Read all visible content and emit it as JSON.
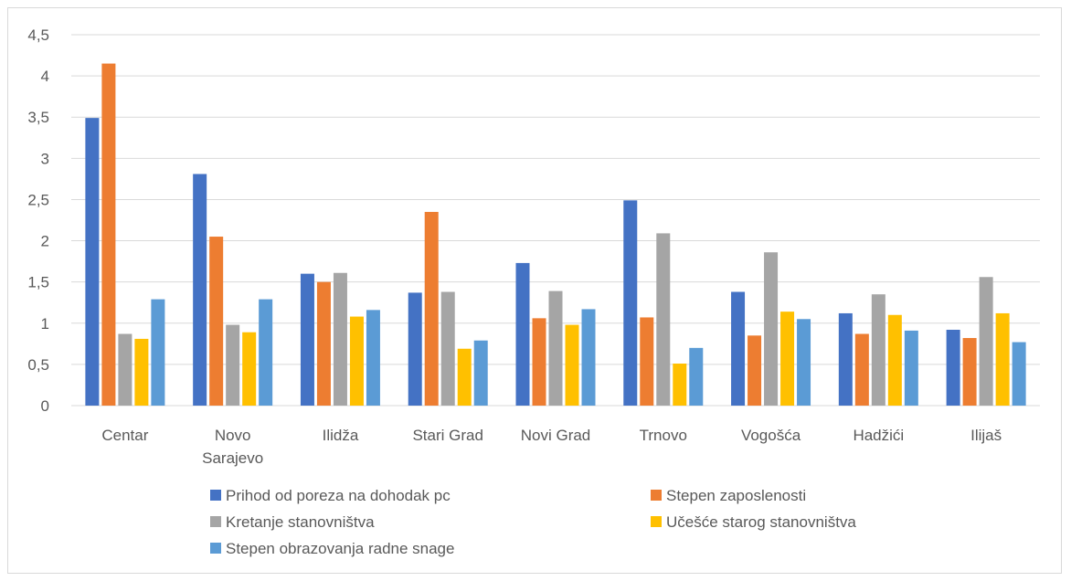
{
  "chart_data": {
    "type": "bar",
    "title": "",
    "xlabel": "",
    "ylabel": "",
    "ylim": [
      0,
      4.5
    ],
    "ytick_step": 0.5,
    "ytick_labels": [
      "0",
      "0,5",
      "1",
      "1,5",
      "2",
      "2,5",
      "3",
      "3,5",
      "4",
      "4,5"
    ],
    "grid": true,
    "legend_position": "bottom",
    "categories": [
      [
        "Centar"
      ],
      [
        "Novo",
        "Sarajevo"
      ],
      [
        "Ilidža"
      ],
      [
        "Stari Grad"
      ],
      [
        "Novi Grad"
      ],
      [
        "Trnovo"
      ],
      [
        "Vogošća"
      ],
      [
        "Hadžići"
      ],
      [
        "Ilijaš"
      ]
    ],
    "series": [
      {
        "name": "Prihod od poreza na dohodak pc",
        "color": "#4472c4",
        "values": [
          3.49,
          2.81,
          1.6,
          1.37,
          1.73,
          2.49,
          1.38,
          1.12,
          0.92
        ]
      },
      {
        "name": "Stepen zaposlenosti",
        "color": "#ed7d31",
        "values": [
          4.15,
          2.05,
          1.5,
          2.35,
          1.06,
          1.07,
          0.85,
          0.87,
          0.82
        ]
      },
      {
        "name": "Kretanje stanovništva",
        "color": "#a5a5a5",
        "values": [
          0.87,
          0.98,
          1.61,
          1.38,
          1.39,
          2.09,
          1.86,
          1.35,
          1.56
        ]
      },
      {
        "name": "Učešće starog stanovništva",
        "color": "#ffc000",
        "values": [
          0.81,
          0.89,
          1.08,
          0.69,
          0.98,
          0.51,
          1.14,
          1.1,
          1.12
        ]
      },
      {
        "name": "Stepen obrazovanja radne snage",
        "color": "#5b9bd5",
        "values": [
          1.29,
          1.29,
          1.16,
          0.79,
          1.17,
          0.7,
          1.05,
          0.91,
          0.77
        ]
      }
    ]
  }
}
